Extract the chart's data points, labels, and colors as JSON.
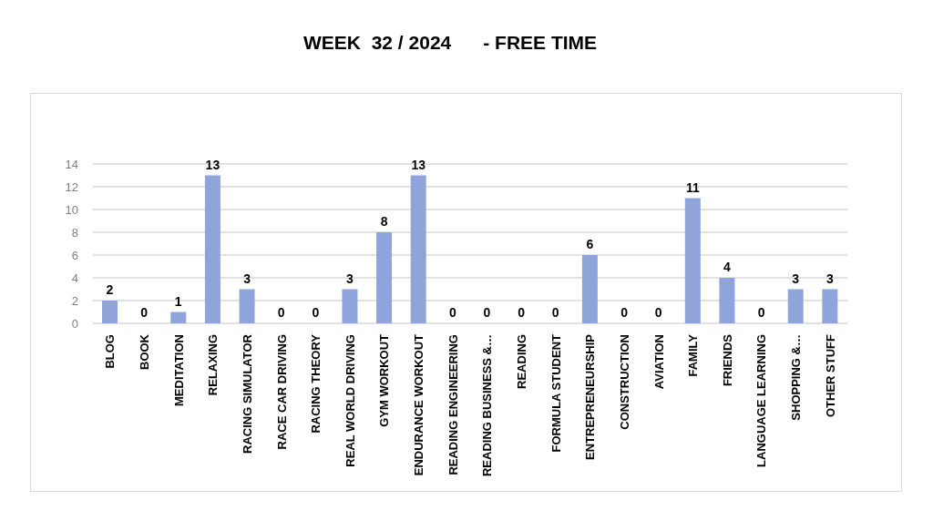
{
  "chart_data": {
    "type": "bar",
    "title": "WEEK  32 / 2024      - FREE TIME",
    "categories": [
      "BLOG",
      "BOOK",
      "MEDITATION",
      "RELAXING",
      "RACING SIMULATOR",
      "RACE CAR DRIVING",
      "RACING THEORY",
      "REAL WORLD DRIVING",
      "GYM WORKOUT",
      "ENDURANCE WORKOUT",
      "READING ENGINEERING",
      "READING BUSINESS &…",
      "READING",
      "FORMULA STUDENT",
      "ENTREPRENEURSHIP",
      "CONSTRUCTION",
      "AVIATION",
      "FAMILY",
      "FRIENDS",
      "LANGUAGE LEARNING",
      "SHOPPING &…",
      "OTHER STUFF"
    ],
    "values": [
      2,
      0,
      1,
      13,
      3,
      0,
      0,
      3,
      8,
      13,
      0,
      0,
      0,
      0,
      6,
      0,
      0,
      11,
      4,
      0,
      3,
      3
    ],
    "color": "#8fa4da",
    "ylim": [
      0,
      14
    ],
    "yticks": [
      0,
      2,
      4,
      6,
      8,
      10,
      12,
      14
    ],
    "grid": "y",
    "data_labels": true
  }
}
